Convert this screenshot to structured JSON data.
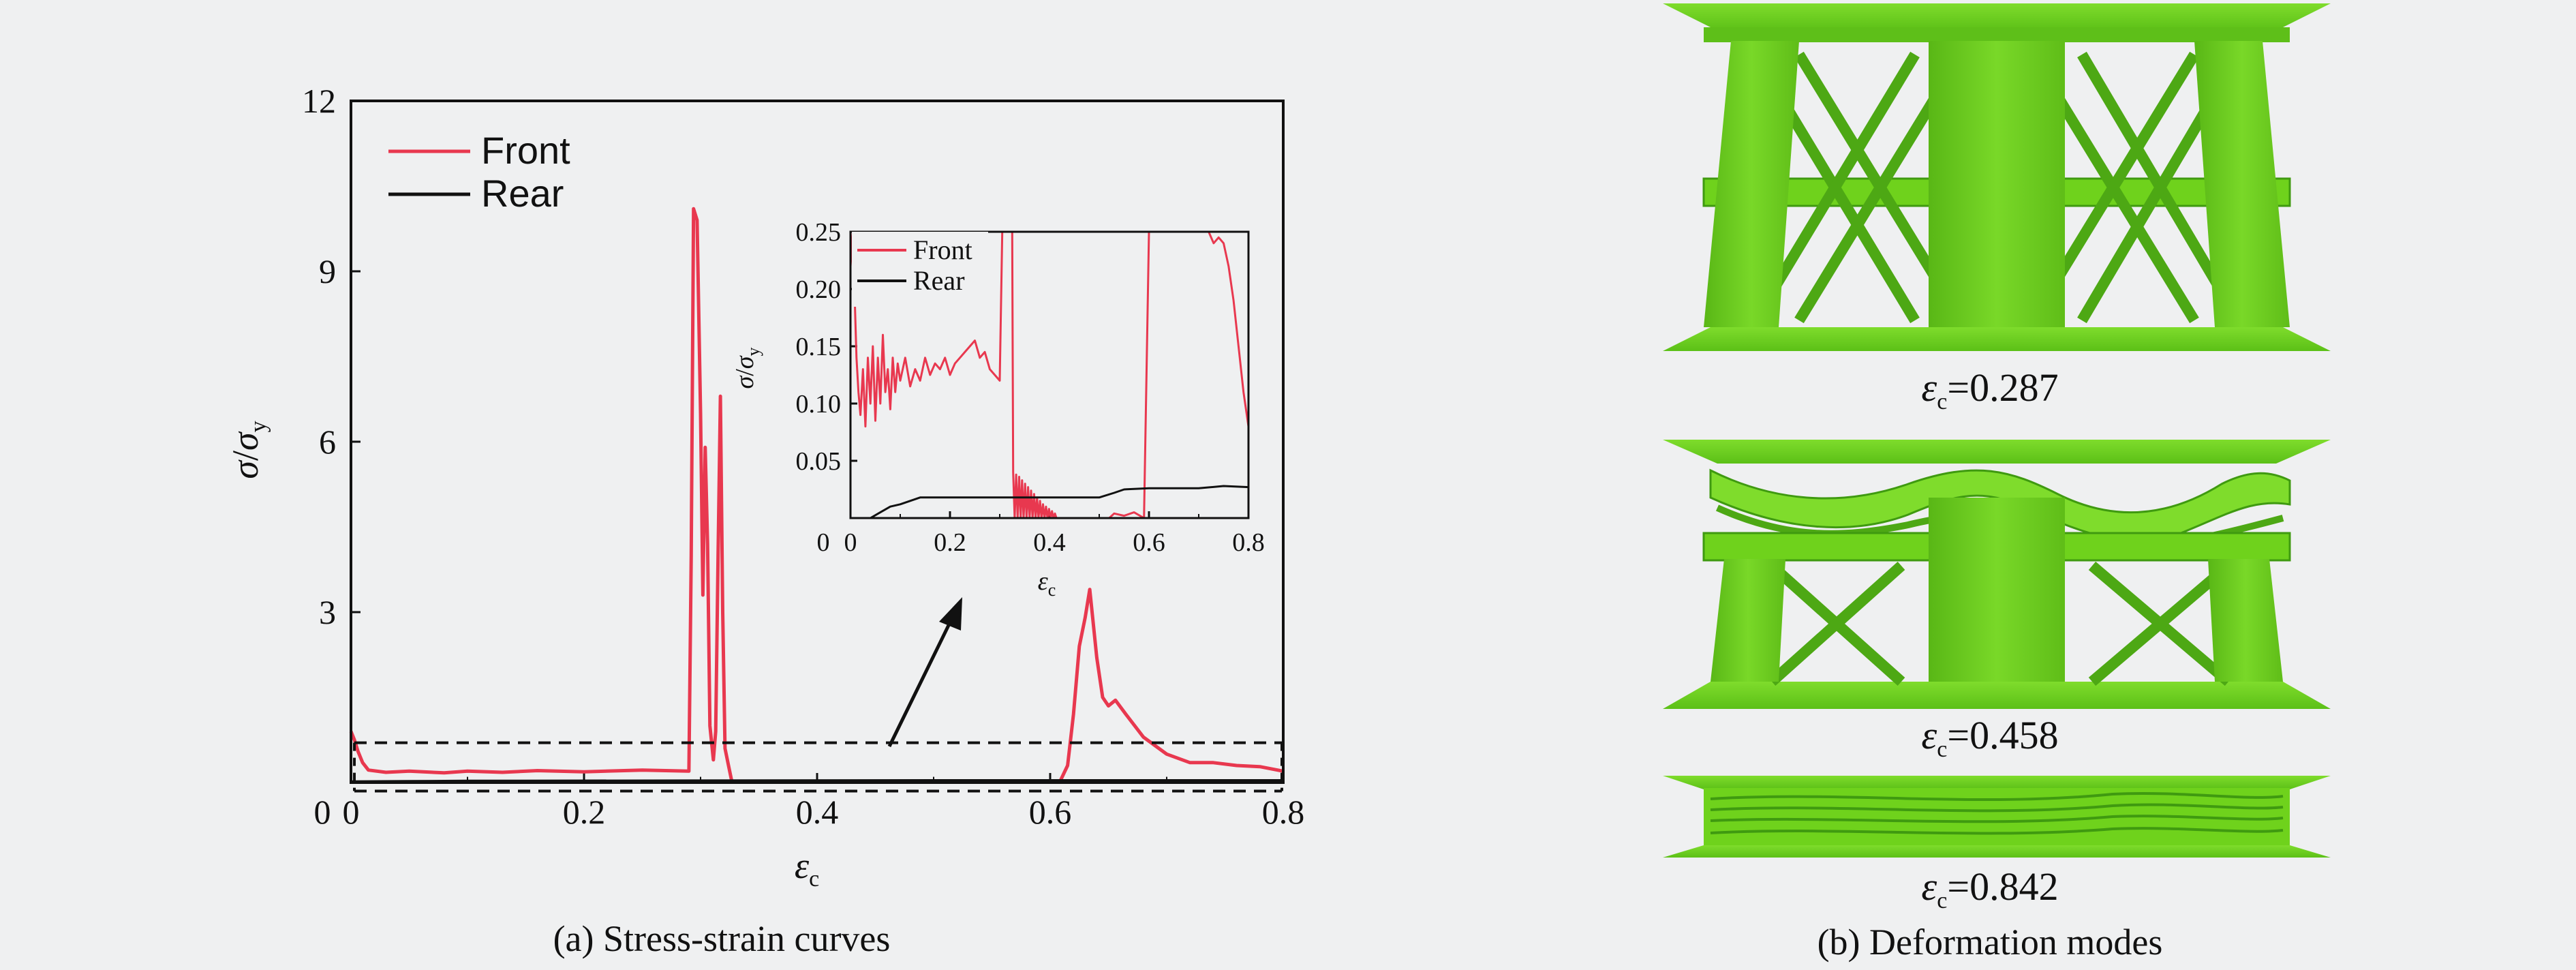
{
  "chart_data": [
    {
      "type": "line",
      "xlim": [
        0,
        0.8
      ],
      "ylim": [
        0,
        12
      ],
      "xticks": [
        "0",
        "0.2",
        "0.4",
        "0.6",
        "0.8"
      ],
      "yticks": [
        "3",
        "6",
        "9",
        "12"
      ],
      "xlabel": {
        "symbol": "ε",
        "sub": "c"
      },
      "ylabel": {
        "num": "σ",
        "slash": "/",
        "den": "σ",
        "sub": "y"
      },
      "legend": {
        "position": "top-left",
        "entries": [
          "Front",
          "Rear"
        ]
      },
      "series": [
        {
          "name": "Front",
          "color": "#e8384f",
          "points": [
            [
              0.0,
              0.9
            ],
            [
              0.003,
              0.75
            ],
            [
              0.006,
              0.55
            ],
            [
              0.01,
              0.35
            ],
            [
              0.015,
              0.22
            ],
            [
              0.03,
              0.18
            ],
            [
              0.05,
              0.2
            ],
            [
              0.08,
              0.17
            ],
            [
              0.1,
              0.2
            ],
            [
              0.13,
              0.18
            ],
            [
              0.16,
              0.21
            ],
            [
              0.2,
              0.19
            ],
            [
              0.25,
              0.22
            ],
            [
              0.29,
              0.2
            ],
            [
              0.292,
              4.0
            ],
            [
              0.294,
              10.1
            ],
            [
              0.297,
              9.9
            ],
            [
              0.3,
              6.5
            ],
            [
              0.302,
              3.3
            ],
            [
              0.304,
              5.9
            ],
            [
              0.306,
              4.2
            ],
            [
              0.308,
              1.0
            ],
            [
              0.311,
              0.4
            ],
            [
              0.313,
              0.9
            ],
            [
              0.315,
              4.0
            ],
            [
              0.317,
              6.8
            ],
            [
              0.319,
              3.0
            ],
            [
              0.321,
              0.6
            ],
            [
              0.324,
              0.3
            ],
            [
              0.327,
              0.0
            ],
            null,
            [
              0.608,
              0.0
            ],
            [
              0.615,
              0.3
            ],
            [
              0.62,
              1.2
            ],
            [
              0.625,
              2.4
            ],
            [
              0.63,
              2.9
            ],
            [
              0.634,
              3.4
            ],
            [
              0.64,
              2.2
            ],
            [
              0.645,
              1.5
            ],
            [
              0.65,
              1.35
            ],
            [
              0.656,
              1.45
            ],
            [
              0.665,
              1.2
            ],
            [
              0.68,
              0.8
            ],
            [
              0.7,
              0.5
            ],
            [
              0.72,
              0.35
            ],
            [
              0.74,
              0.35
            ],
            [
              0.76,
              0.3
            ],
            [
              0.78,
              0.28
            ],
            [
              0.8,
              0.2
            ]
          ]
        },
        {
          "name": "Rear",
          "color": "#111111",
          "points": [
            [
              0.0,
              0.01
            ],
            [
              0.05,
              0.015
            ],
            [
              0.1,
              0.02
            ],
            [
              0.3,
              0.025
            ],
            [
              0.5,
              0.03
            ],
            [
              0.8,
              0.03
            ]
          ]
        }
      ],
      "annotations": {
        "dashed_box": {
          "xlim": [
            0,
            0.8
          ],
          "ylim": [
            -0.15,
            0.7
          ]
        },
        "arrow": "points from dashed box to inset"
      },
      "caption": "(a) Stress-strain curves"
    },
    {
      "type": "line",
      "role": "inset",
      "xlim": [
        0,
        0.8
      ],
      "ylim": [
        0,
        0.25
      ],
      "xticks": [
        "0",
        "0.2",
        "0.4",
        "0.6",
        "0.8"
      ],
      "yticks": [
        "0.05",
        "0.10",
        "0.15",
        "0.20",
        "0.25"
      ],
      "xlabel": {
        "symbol": "ε",
        "sub": "c"
      },
      "ylabel": {
        "num": "σ",
        "slash": "/",
        "den": "σ",
        "sub": "y"
      },
      "legend": {
        "position": "top-right",
        "entries": [
          "Front",
          "Rear"
        ]
      },
      "series": [
        {
          "name": "Front",
          "color": "#e8384f",
          "points": [
            [
              0.0,
              0.25
            ],
            [
              0.008,
              0.2
            ],
            [
              0.012,
              0.14
            ],
            [
              0.016,
              0.11
            ],
            [
              0.02,
              0.09
            ],
            [
              0.025,
              0.13
            ],
            [
              0.03,
              0.08
            ],
            [
              0.035,
              0.14
            ],
            [
              0.04,
              0.1
            ],
            [
              0.045,
              0.15
            ],
            [
              0.05,
              0.085
            ],
            [
              0.055,
              0.14
            ],
            [
              0.06,
              0.1
            ],
            [
              0.065,
              0.16
            ],
            [
              0.07,
              0.11
            ],
            [
              0.075,
              0.13
            ],
            [
              0.08,
              0.095
            ],
            [
              0.085,
              0.14
            ],
            [
              0.09,
              0.11
            ],
            [
              0.095,
              0.135
            ],
            [
              0.1,
              0.12
            ],
            [
              0.11,
              0.14
            ],
            [
              0.12,
              0.115
            ],
            [
              0.13,
              0.13
            ],
            [
              0.14,
              0.12
            ],
            [
              0.15,
              0.14
            ],
            [
              0.16,
              0.125
            ],
            [
              0.17,
              0.135
            ],
            [
              0.18,
              0.13
            ],
            [
              0.19,
              0.14
            ],
            [
              0.2,
              0.125
            ],
            [
              0.21,
              0.135
            ],
            [
              0.22,
              0.14
            ],
            [
              0.23,
              0.145
            ],
            [
              0.24,
              0.15
            ],
            [
              0.25,
              0.155
            ],
            [
              0.26,
              0.14
            ],
            [
              0.27,
              0.145
            ],
            [
              0.28,
              0.13
            ],
            [
              0.29,
              0.125
            ],
            [
              0.3,
              0.12
            ],
            [
              0.305,
              0.25
            ],
            null,
            [
              0.325,
              0.25
            ],
            [
              0.327,
              0.04
            ],
            [
              0.33,
              0.0
            ],
            [
              0.333,
              0.038
            ],
            [
              0.336,
              0.0
            ],
            [
              0.339,
              0.036
            ],
            [
              0.342,
              0.0
            ],
            [
              0.345,
              0.033
            ],
            [
              0.348,
              0.0
            ],
            [
              0.351,
              0.03
            ],
            [
              0.354,
              0.0
            ],
            [
              0.357,
              0.027
            ],
            [
              0.36,
              0.0
            ],
            [
              0.363,
              0.024
            ],
            [
              0.366,
              0.0
            ],
            [
              0.369,
              0.021
            ],
            [
              0.372,
              0.0
            ],
            [
              0.375,
              0.018
            ],
            [
              0.378,
              0.0
            ],
            [
              0.381,
              0.015
            ],
            [
              0.384,
              0.0
            ],
            [
              0.387,
              0.012
            ],
            [
              0.39,
              0.0
            ],
            [
              0.393,
              0.01
            ],
            [
              0.396,
              0.0
            ],
            [
              0.399,
              0.008
            ],
            [
              0.402,
              0.0
            ],
            [
              0.405,
              0.006
            ],
            [
              0.408,
              0.0
            ],
            [
              0.411,
              0.004
            ],
            [
              0.414,
              0.0
            ],
            null,
            [
              0.52,
              0.0
            ],
            [
              0.53,
              0.004
            ],
            [
              0.55,
              0.002
            ],
            [
              0.57,
              0.005
            ],
            [
              0.59,
              0.0
            ],
            [
              0.6,
              0.25
            ],
            null,
            [
              0.72,
              0.25
            ],
            [
              0.73,
              0.24
            ],
            [
              0.74,
              0.245
            ],
            [
              0.75,
              0.24
            ],
            [
              0.76,
              0.22
            ],
            [
              0.77,
              0.19
            ],
            [
              0.78,
              0.15
            ],
            [
              0.79,
              0.11
            ],
            [
              0.8,
              0.08
            ]
          ]
        },
        {
          "name": "Rear",
          "color": "#111111",
          "points": [
            [
              0.0,
              0.0
            ],
            [
              0.04,
              0.0
            ],
            [
              0.06,
              0.005
            ],
            [
              0.08,
              0.01
            ],
            [
              0.1,
              0.012
            ],
            [
              0.12,
              0.015
            ],
            [
              0.14,
              0.018
            ],
            [
              0.2,
              0.018
            ],
            [
              0.3,
              0.018
            ],
            [
              0.5,
              0.018
            ],
            [
              0.53,
              0.022
            ],
            [
              0.55,
              0.025
            ],
            [
              0.6,
              0.026
            ],
            [
              0.7,
              0.026
            ],
            [
              0.75,
              0.028
            ],
            [
              0.8,
              0.027
            ]
          ]
        }
      ]
    }
  ],
  "deformation": {
    "caption": "(b) Deformation modes",
    "modes": [
      {
        "symbol": "ε",
        "sub": "c",
        "value": "=0.287"
      },
      {
        "symbol": "ε",
        "sub": "c",
        "value": "=0.458"
      },
      {
        "symbol": "ε",
        "sub": "c",
        "value": "=0.842"
      }
    ],
    "colors": {
      "green": "#6fd21c",
      "green_light": "#8ee33c",
      "green_dark": "#3f9a10"
    }
  }
}
